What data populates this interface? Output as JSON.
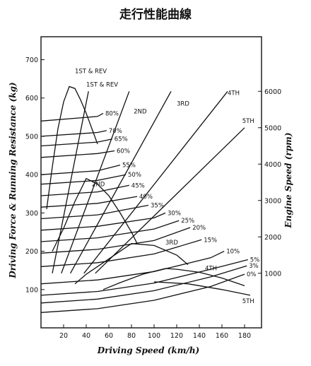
{
  "chart_data": {
    "type": "line",
    "title": "走行性能曲線",
    "xlabel": "Driving Speed (km/h)",
    "ylabel_left": "Driving Force & Running Resistance (kg)",
    "ylabel_right": "Engine Speed (rpm)",
    "xlim": [
      0,
      195
    ],
    "ylim_left": [
      0,
      760
    ],
    "ylim_right": [
      -500,
      7500
    ],
    "x_ticks": [
      "20",
      "40",
      "60",
      "80",
      "100",
      "120",
      "140",
      "160",
      "180"
    ],
    "y_left_ticks": [
      "100",
      "200",
      "300",
      "400",
      "500",
      "600",
      "700"
    ],
    "y_right_ticks": [
      "1000",
      "2000",
      "3000",
      "4000",
      "5000",
      "6000"
    ],
    "resistance_curves": [
      {
        "name": "0%",
        "x": [
          0,
          50,
          100,
          150,
          180
        ],
        "y": [
          40,
          50,
          72,
          108,
          140
        ]
      },
      {
        "name": "3%",
        "x": [
          0,
          50,
          100,
          150,
          182
        ],
        "y": [
          65,
          75,
          97,
          133,
          162
        ]
      },
      {
        "name": "5%",
        "x": [
          0,
          50,
          100,
          150,
          183
        ],
        "y": [
          85,
          95,
          117,
          153,
          178
        ]
      },
      {
        "name": "10%",
        "x": [
          0,
          50,
          100,
          150,
          162
        ],
        "y": [
          115,
          125,
          147,
          183,
          200
        ]
      },
      {
        "name": "15%",
        "x": [
          0,
          50,
          100,
          142
        ],
        "y": [
          160,
          170,
          193,
          230
        ]
      },
      {
        "name": "20%",
        "x": [
          0,
          50,
          100,
          132
        ],
        "y": [
          195,
          205,
          228,
          262
        ]
      },
      {
        "name": "25%",
        "x": [
          0,
          50,
          100,
          122
        ],
        "y": [
          225,
          235,
          258,
          280
        ]
      },
      {
        "name": "30%",
        "x": [
          0,
          50,
          100,
          110
        ],
        "y": [
          255,
          265,
          287,
          300
        ]
      },
      {
        "name": "35%",
        "x": [
          0,
          50,
          95
        ],
        "y": [
          285,
          295,
          320
        ]
      },
      {
        "name": "40%",
        "x": [
          0,
          50,
          85
        ],
        "y": [
          315,
          325,
          343
        ]
      },
      {
        "name": "45%",
        "x": [
          0,
          50,
          78
        ],
        "y": [
          345,
          355,
          372
        ]
      },
      {
        "name": "50%",
        "x": [
          0,
          50,
          75
        ],
        "y": [
          375,
          385,
          400
        ]
      },
      {
        "name": "55%",
        "x": [
          0,
          50,
          70
        ],
        "y": [
          400,
          410,
          425
        ]
      },
      {
        "name": "60%",
        "x": [
          0,
          50,
          65
        ],
        "y": [
          445,
          455,
          462
        ]
      },
      {
        "name": "65%",
        "x": [
          0,
          50,
          63
        ],
        "y": [
          475,
          485,
          493
        ]
      },
      {
        "name": "70%",
        "x": [
          0,
          50,
          58
        ],
        "y": [
          500,
          510,
          515
        ]
      },
      {
        "name": "80%",
        "x": [
          0,
          50,
          55
        ],
        "y": [
          540,
          552,
          560
        ]
      }
    ],
    "driving_force_curves": [
      {
        "name": "1ST & REV",
        "x": [
          5,
          10,
          15,
          20,
          25,
          30,
          35,
          40,
          45,
          50
        ],
        "y": [
          310,
          420,
          520,
          590,
          630,
          625,
          595,
          560,
          520,
          480
        ]
      },
      {
        "name": "2ND",
        "x": [
          10,
          20,
          30,
          40,
          50,
          60,
          70,
          80,
          85
        ],
        "y": [
          200,
          260,
          330,
          390,
          375,
          345,
          300,
          250,
          220
        ]
      },
      {
        "name": "3RD",
        "x": [
          30,
          40,
          60,
          80,
          100,
          120,
          130
        ],
        "y": [
          115,
          140,
          180,
          220,
          215,
          190,
          165
        ]
      },
      {
        "name": "4TH",
        "x": [
          55,
          70,
          90,
          110,
          120,
          140,
          160,
          180
        ],
        "y": [
          100,
          118,
          140,
          155,
          153,
          145,
          130,
          110
        ]
      },
      {
        "name": "5TH",
        "x": [
          100,
          130,
          160,
          185
        ],
        "y": [
          120,
          115,
          100,
          85
        ]
      }
    ],
    "engine_speed_lines": [
      {
        "name": "1ST & REV",
        "x": [
          10,
          42
        ],
        "rpm": [
          1000,
          6000
        ]
      },
      {
        "name": "2ND",
        "x": [
          18,
          78
        ],
        "rpm": [
          1000,
          6000
        ]
      },
      {
        "name": "3RD",
        "x": [
          26,
          115
        ],
        "rpm": [
          1000,
          6000
        ]
      },
      {
        "name": "4TH",
        "x": [
          38,
          165
        ],
        "rpm": [
          1000,
          6000
        ]
      },
      {
        "name": "5TH",
        "x": [
          48,
          180
        ],
        "rpm": [
          1000,
          5000
        ]
      }
    ],
    "labels": {
      "1st_rev_a": "1ST & REV",
      "1st_rev_b": "1ST & REV",
      "2nd_line": "2ND",
      "2nd_force": "2ND",
      "3rd_line": "3RD",
      "3rd_force": "3RD",
      "4th_line": "4TH",
      "4th_force": "4TH",
      "5th_line": "5TH",
      "5th_force": "5TH"
    }
  }
}
